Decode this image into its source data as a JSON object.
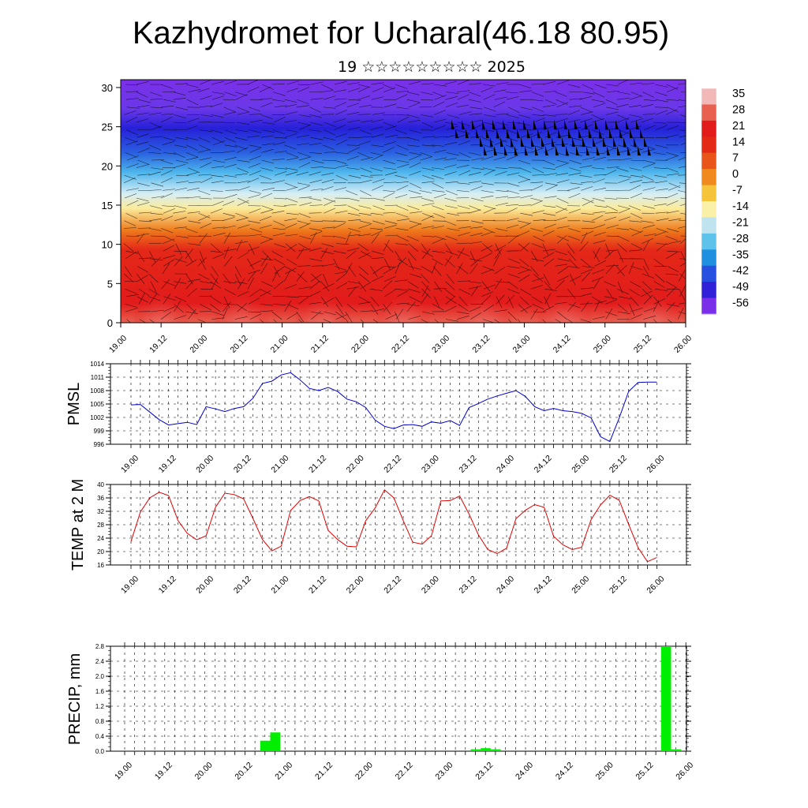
{
  "title": "Kazhydromet for Ucharal(46.18 80.95)",
  "subtitle": "19 ☆☆☆☆☆☆☆☆☆ 2025",
  "time_labels": [
    "19.00",
    "19.12",
    "20.00",
    "20.12",
    "21.00",
    "21.12",
    "22.00",
    "22.12",
    "23.00",
    "23.12",
    "24.00",
    "24.12",
    "25.00",
    "25.12",
    "26.00"
  ],
  "chart_data": [
    {
      "type": "heatmap",
      "title": "",
      "xlabel": "",
      "ylabel": "",
      "x_ticks": [
        "19.00",
        "19.12",
        "20.00",
        "20.12",
        "21.00",
        "21.12",
        "22.00",
        "22.12",
        "23.00",
        "23.12",
        "24.00",
        "24.12",
        "25.00",
        "25.12",
        "26.00"
      ],
      "y_ticks": [
        0,
        5,
        10,
        15,
        20,
        25,
        30
      ],
      "ylim": [
        0,
        31
      ],
      "colorbar_labels": [
        35,
        28,
        21,
        14,
        7,
        0,
        -7,
        -14,
        -21,
        -28,
        -35,
        -42,
        -49,
        -56
      ],
      "colorbar_colors": [
        "#f2b8b8",
        "#e8604f",
        "#e21b1b",
        "#e22a15",
        "#e8541a",
        "#f08a1e",
        "#f5c43a",
        "#fbf0a8",
        "#bfe4f0",
        "#5ec3ea",
        "#1f8fe0",
        "#2850e0",
        "#3020d8",
        "#7a30e8"
      ],
      "note_vertical_bands": [
        {
          "height_km": 0,
          "temp_c": 35
        },
        {
          "height_km": 5,
          "temp_c": 21
        },
        {
          "height_km": 10,
          "temp_c": 7
        },
        {
          "height_km": 14.5,
          "temp_c": -7
        },
        {
          "height_km": 17,
          "temp_c": -21
        },
        {
          "height_km": 21,
          "temp_c": -35
        },
        {
          "height_km": 24.5,
          "temp_c": -56
        },
        {
          "height_km": 28,
          "temp_c": -49
        },
        {
          "height_km": 31,
          "temp_c": -56
        }
      ]
    },
    {
      "type": "line",
      "ylabel": "PMSL",
      "ylim": [
        996,
        1014
      ],
      "y_ticks": [
        996,
        999,
        1002,
        1005,
        1008,
        1011,
        1014
      ],
      "x": [
        0,
        1,
        2,
        3,
        4,
        5,
        6,
        7,
        8,
        9,
        10,
        11,
        12,
        13,
        14,
        15,
        16,
        17,
        18,
        19,
        20,
        21,
        22,
        23,
        24,
        25,
        26,
        27,
        28,
        29,
        30,
        31,
        32,
        33,
        34,
        35,
        36,
        37,
        38,
        39,
        40,
        41,
        42,
        43,
        44,
        45,
        46,
        47,
        48,
        49,
        50,
        51,
        52,
        53,
        54,
        55,
        56
      ],
      "series": [
        {
          "color": "#0000cc",
          "values": [
            1004.8,
            1004.9,
            1003.2,
            1001.5,
            1000.3,
            1000.6,
            1000.9,
            1000.4,
            1004.4,
            1003.9,
            1003.3,
            1004.0,
            1004.4,
            1006.3,
            1009.6,
            1010.1,
            1011.5,
            1012.0,
            1010.4,
            1008.5,
            1008.0,
            1008.7,
            1007.8,
            1006.1,
            1005.5,
            1004.2,
            1001.4,
            1000.0,
            999.5,
            1000.3,
            1000.4,
            1000.0,
            1001.0,
            1000.7,
            1001.3,
            1000.2,
            1004.2,
            1005.1,
            1006.1,
            1006.8,
            1007.4,
            1008.0,
            1006.7,
            1004.4,
            1003.5,
            1004.0,
            1003.5,
            1003.3,
            1002.9,
            1001.9,
            997.7,
            996.6,
            1001.9,
            1007.8,
            1009.8,
            1009.9,
            1009.9
          ]
        }
      ]
    },
    {
      "type": "line",
      "ylabel": "TEMP at 2 M",
      "ylim": [
        16,
        40
      ],
      "y_ticks": [
        16,
        20,
        24,
        28,
        32,
        36,
        40
      ],
      "series": [
        {
          "color": "#e00000",
          "values": [
            23.0,
            31.8,
            36.0,
            37.7,
            36.7,
            29.3,
            25.4,
            23.5,
            24.7,
            33.2,
            37.4,
            37.0,
            35.7,
            29.8,
            23.6,
            20.2,
            21.6,
            32.2,
            35.2,
            36.4,
            35.1,
            26.3,
            23.6,
            21.6,
            21.4,
            29.2,
            33.0,
            38.4,
            36.0,
            29.2,
            22.8,
            22.2,
            24.7,
            35.1,
            35.2,
            36.6,
            31.2,
            25.0,
            20.6,
            19.4,
            21.0,
            29.8,
            32.3,
            34.0,
            33.2,
            24.6,
            22.0,
            20.6,
            21.3,
            29.5,
            33.9,
            36.8,
            35.3,
            28.1,
            21.2,
            17.0,
            18.2
          ]
        }
      ]
    },
    {
      "type": "bar",
      "ylabel": "PRECIP, mm",
      "ylim": [
        0,
        2.8
      ],
      "y_ticks": [
        "0.0",
        "0.4",
        "0.8",
        "1.2",
        "1.6",
        "2.0",
        "2.4",
        "2.8"
      ],
      "bars": [
        {
          "x": 14,
          "value": 0.28
        },
        {
          "x": 15,
          "value": 0.5
        },
        {
          "x": 35,
          "value": 0.05
        },
        {
          "x": 36,
          "value": 0.08
        },
        {
          "x": 37,
          "value": 0.05
        },
        {
          "x": 54,
          "value": 2.8
        },
        {
          "x": 55,
          "value": 0.05
        }
      ],
      "bar_color": "#00ee00"
    }
  ]
}
